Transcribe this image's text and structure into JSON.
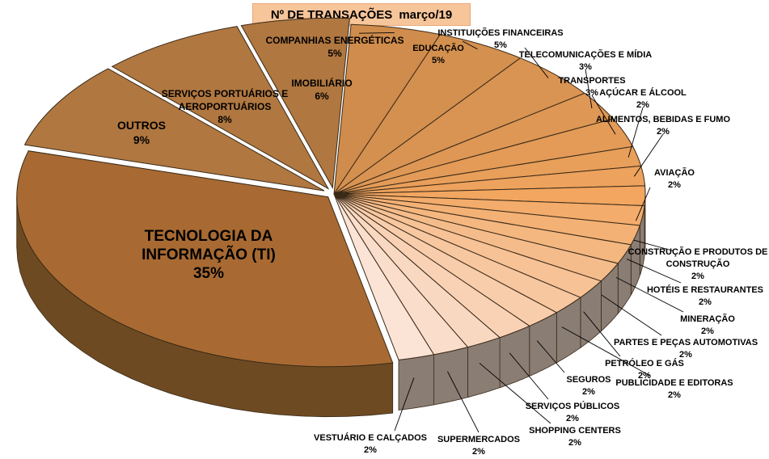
{
  "chart_data": {
    "type": "pie",
    "title": "Nº DE TRANSAÇÕES",
    "subtitle": "março/19",
    "categories": [
      "TECNOLOGIA DA INFORMAÇÃO (TI)",
      "OUTROS",
      "SERVIÇOS PORTUÁRIOS E AEROPORTUÁRIOS",
      "IMOBILIÁRIO",
      "COMPANHIAS ENERGÉTICAS",
      "EDUCAÇÃO",
      "INSTITUIÇÕES FINANCEIRAS",
      "TELECOMUNICAÇÕES E MÍDIA",
      "TRANSPORTES",
      "AÇÚCAR E ÁLCOOL",
      "ALIMENTOS, BEBIDAS E FUMO",
      "AVIAÇÃO",
      "CONSTRUÇÃO E PRODUTOS DE CONSTRUÇÃO",
      "HOTÉIS E RESTAURANTES",
      "MINERAÇÃO",
      "PARTES E PEÇAS AUTOMOTIVAS",
      "PETRÓLEO E GÁS",
      "PUBLICIDADE E EDITORAS",
      "SEGUROS",
      "SERVIÇOS PÚBLICOS",
      "SHOPPING CENTERS",
      "SUPERMERCADOS",
      "VESTUÁRIO E CALÇADOS"
    ],
    "values": [
      35,
      9,
      8,
      6,
      5,
      5,
      5,
      3,
      3,
      2,
      2,
      2,
      2,
      2,
      2,
      2,
      2,
      2,
      2,
      2,
      2,
      2,
      2
    ],
    "value_labels": [
      "35%",
      "9%",
      "8%",
      "6%",
      "5%",
      "5%",
      "5%",
      "3%",
      "3%",
      "2%",
      "2%",
      "2%",
      "2%",
      "2%",
      "2%",
      "2%",
      "2%",
      "2%",
      "2%",
      "2%",
      "2%",
      "2%",
      "2%"
    ],
    "colors": {
      "ti": "#a86a32",
      "large": "#b07740",
      "medium": "#cf8c4c",
      "peak": "#f2a660",
      "light": "#fbe3d6",
      "side_dark": "#6e4a22",
      "side_grey": "#8a7d74",
      "outline": "#3a2a18",
      "title_bg": "#f7c59a"
    }
  }
}
